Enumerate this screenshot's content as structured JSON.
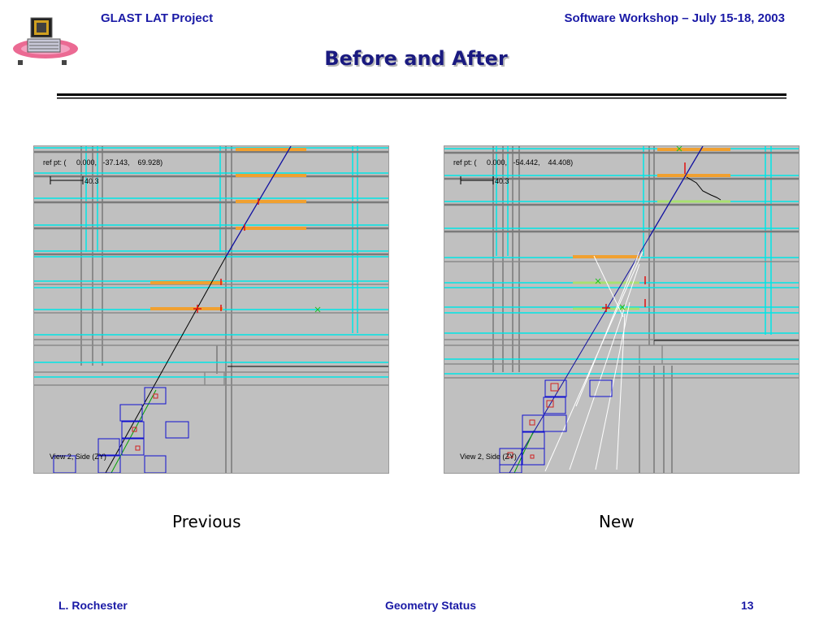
{
  "header": {
    "project": "GLAST LAT Project",
    "event": "Software Workshop – July 15-18, 2003"
  },
  "title": "Before and After",
  "panels": [
    {
      "caption": "Previous",
      "ref_pt": "ref pt: (     0.000,   -37.143,    69.928)",
      "scale": "40.3",
      "view": "View 2, Side (ZY)"
    },
    {
      "caption": "New",
      "ref_pt": "ref pt: (     0.000,   -54.442,    44.408)",
      "scale": "40.3",
      "view": "View 2, Side (ZY)"
    }
  ],
  "footer": {
    "author": "L. Rochester",
    "topic": "Geometry Status",
    "page": "13"
  },
  "colors": {
    "header_text": "#1a1aa6",
    "title_text": "#1a1a80",
    "panel_bg": "#c0c0c0",
    "cyan": "#00e5e5",
    "orange": "#f0a030",
    "track": "#1010a0"
  }
}
